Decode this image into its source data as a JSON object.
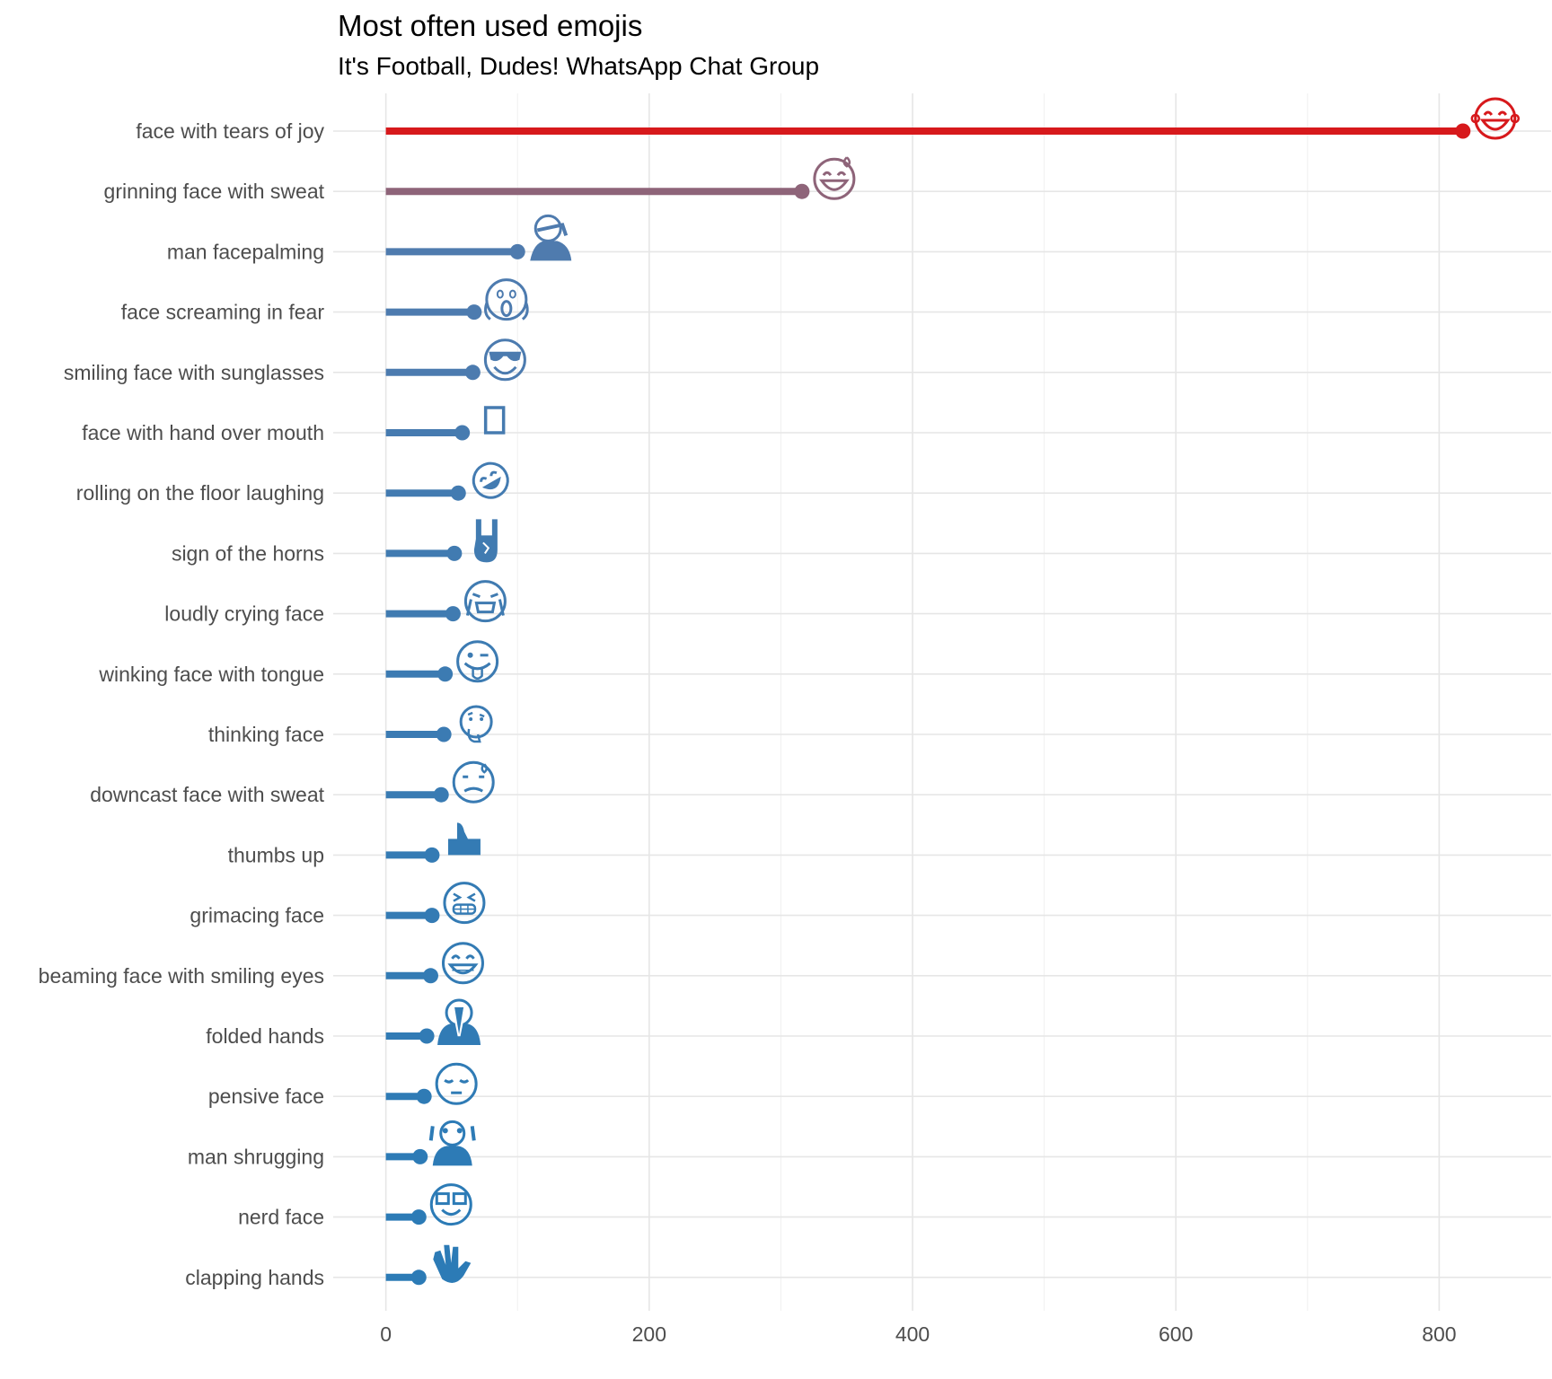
{
  "chart_data": {
    "type": "lollipop",
    "title": "Most often used emojis",
    "subtitle": "It's Football, Dudes! WhatsApp Chat Group",
    "xlim": [
      -40,
      885
    ],
    "x_ticks": [
      0,
      200,
      400,
      600,
      800
    ],
    "grid": true,
    "categories": [
      "face with tears of joy",
      "grinning face with sweat",
      "man facepalming",
      "face screaming in fear",
      "smiling face with sunglasses",
      "face with hand over mouth",
      "rolling on the floor laughing",
      "sign of the horns",
      "loudly crying face",
      "winking face with tongue",
      "thinking face",
      "downcast face with sweat",
      "thumbs up",
      "grimacing face",
      "beaming face with smiling eyes",
      "folded hands",
      "pensive face",
      "man shrugging",
      "nerd face",
      "clapping hands"
    ],
    "values": [
      818,
      316,
      100,
      67,
      66,
      58,
      55,
      52,
      51,
      45,
      44,
      42,
      35,
      35,
      34,
      31,
      29,
      26,
      25,
      25
    ],
    "icons": [
      "face-with-tears-of-joy-icon",
      "grinning-face-with-sweat-icon",
      "man-facepalming-icon",
      "face-screaming-in-fear-icon",
      "smiling-face-with-sunglasses-icon",
      "face-with-hand-over-mouth-icon",
      "rolling-on-the-floor-laughing-icon",
      "sign-of-the-horns-icon",
      "loudly-crying-face-icon",
      "winking-face-with-tongue-icon",
      "thinking-face-icon",
      "downcast-face-with-sweat-icon",
      "thumbs-up-icon",
      "grimacing-face-icon",
      "beaming-face-with-smiling-eyes-icon",
      "folded-hands-icon",
      "pensive-face-icon",
      "man-shrugging-icon",
      "nerd-face-icon",
      "clapping-hands-icon"
    ],
    "colors": {
      "high": "#D7191C",
      "second": "#8E6479",
      "mid": "#4F7BAE",
      "low": "#2C7BB6"
    }
  }
}
